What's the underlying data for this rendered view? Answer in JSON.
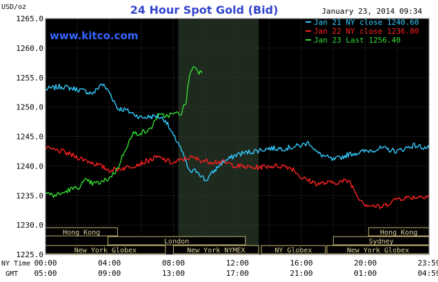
{
  "chart_data": {
    "type": "line",
    "title": "24 Hour Spot Gold (Bid)",
    "watermark": "www.kitco.com",
    "timestamp": "January 23, 2014 09:34",
    "ylabel": "USD/oz",
    "ylim": [
      1225,
      1265
    ],
    "y_ticks": [
      "1225.0",
      "1230.0",
      "1235.0",
      "1240.0",
      "1245.0",
      "1250.0",
      "1255.0",
      "1260.0",
      "1265.0"
    ],
    "x_label_ny": "NY Time",
    "x_label_gmt": "GMT",
    "x_hours": [
      0,
      4,
      8,
      12,
      16,
      20,
      23.983
    ],
    "x_ticks_ny": [
      "00:00",
      "04:00",
      "08:00",
      "12:00",
      "16:00",
      "20:00",
      "23:59"
    ],
    "x_ticks_gmt": [
      "05:00",
      "09:00",
      "13:00",
      "17:00",
      "21:00",
      "01:00",
      "04:59"
    ],
    "shaded_hours": [
      8.3,
      13.33
    ],
    "grid": true,
    "legend_position": "top-right",
    "legend": [
      {
        "label": "Jan 21 NY close 1240.60",
        "color": "#33ccff"
      },
      {
        "label": "Jan 22 NY close 1236.80",
        "color": "#ff2020"
      },
      {
        "label": "Jan 23 Last 1256.40",
        "color": "#33dd33"
      }
    ],
    "series": [
      {
        "color": "#33ccff",
        "x": [
          0,
          1,
          2,
          3,
          3.5,
          4,
          4.5,
          5,
          6,
          7,
          7.5,
          8,
          8.3,
          8.8,
          9,
          9.5,
          10,
          11,
          12,
          13,
          14,
          15,
          16,
          16.5,
          17,
          18,
          19,
          20,
          21,
          22,
          23,
          24
        ],
        "y": [
          1253.0,
          1253.5,
          1253.0,
          1252.3,
          1254.0,
          1252.5,
          1249.8,
          1249.5,
          1248.2,
          1248.5,
          1247.8,
          1245.0,
          1244.0,
          1240.5,
          1239.0,
          1239.2,
          1237.5,
          1240.5,
          1242.0,
          1242.5,
          1243.0,
          1243.0,
          1243.5,
          1244.0,
          1242.2,
          1241.0,
          1242.0,
          1242.5,
          1243.0,
          1242.5,
          1243.5,
          1243.0
        ]
      },
      {
        "color": "#ff2020",
        "x": [
          0,
          1,
          2,
          3,
          4,
          5,
          6,
          7,
          8,
          9,
          10,
          11,
          12,
          13,
          14,
          15,
          15.5,
          16,
          17,
          18,
          19,
          19.5,
          20,
          21,
          22,
          23,
          24
        ],
        "y": [
          1243.0,
          1242.5,
          1241.5,
          1240.5,
          1239.3,
          1239.7,
          1240.5,
          1241.5,
          1240.5,
          1241.5,
          1240.8,
          1240.7,
          1240.0,
          1239.7,
          1240.0,
          1240.0,
          1239.5,
          1238.0,
          1237.0,
          1237.2,
          1237.5,
          1235.0,
          1233.5,
          1233.0,
          1234.5,
          1234.7,
          1235.0
        ]
      },
      {
        "color": "#33dd33",
        "x": [
          0,
          0.5,
          1,
          1.5,
          2,
          2.5,
          3,
          3.5,
          4,
          4.5,
          5,
          5.5,
          6,
          6.5,
          7,
          7.5,
          8,
          8.5,
          8.8,
          9,
          9.3,
          9.6,
          9.8
        ],
        "y": [
          1235.5,
          1235.0,
          1235.3,
          1236.0,
          1236.3,
          1237.5,
          1237.0,
          1237.2,
          1238.0,
          1239.5,
          1243.0,
          1245.5,
          1245.7,
          1246.0,
          1248.5,
          1248.5,
          1248.8,
          1249.0,
          1251.0,
          1255.5,
          1257.0,
          1256.0,
          1255.8
        ]
      }
    ]
  },
  "sessions": {
    "row1": [
      {
        "label": "Hong Kong",
        "start": 0,
        "end": 4.5
      },
      {
        "label": "Hong Kong",
        "start": 20.2,
        "end": 23.983
      }
    ],
    "row2": [
      {
        "label": "London",
        "start": 3.9,
        "end": 12.5
      },
      {
        "label": "Sydney",
        "start": 18.0,
        "end": 23.983
      }
    ],
    "row3": [
      {
        "label": "New York Globex",
        "start": 0,
        "end": 7.5
      },
      {
        "label": "New York NYMEX",
        "start": 8.0,
        "end": 13.33
      },
      {
        "label": "NY Globex",
        "start": 13.5,
        "end": 17.5
      },
      {
        "label": "New York Globex",
        "start": 17.6,
        "end": 23.983
      }
    ]
  }
}
